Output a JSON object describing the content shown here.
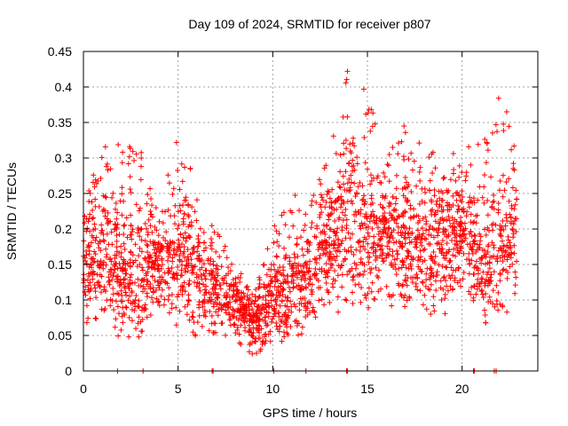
{
  "chart_data": {
    "type": "scatter",
    "title": "Day 109 of 2024, SRMTID for receiver p807",
    "xlabel": "GPS time / hours",
    "ylabel": "SRMTID / TECUs",
    "xlim": [
      0,
      24
    ],
    "ylim": [
      0,
      0.45
    ],
    "x_ticks": [
      0,
      5,
      10,
      15,
      20
    ],
    "x_tick_labels": [
      "0",
      "5",
      "10",
      "15",
      "20"
    ],
    "y_ticks": [
      0,
      0.05,
      0.1,
      0.15,
      0.2,
      0.25,
      0.3,
      0.35,
      0.4,
      0.45
    ],
    "y_tick_labels": [
      "0",
      "0.05",
      "0.1",
      "0.15",
      "0.2",
      "0.25",
      "0.3",
      "0.35",
      "0.4",
      "0.45"
    ],
    "grid": true,
    "marker": "+",
    "marker_color": "#ff0000",
    "grid_color": "#a0a0a0",
    "description_points_generated_from_envelope": true,
    "envelope": {
      "hours": [
        0,
        1,
        2,
        3,
        4,
        5,
        6,
        7,
        8,
        9,
        10,
        11,
        12,
        13,
        14,
        15,
        16,
        17,
        18,
        19,
        20,
        21,
        22,
        23
      ],
      "median": [
        0.14,
        0.17,
        0.15,
        0.13,
        0.16,
        0.15,
        0.13,
        0.12,
        0.1,
        0.07,
        0.1,
        0.12,
        0.13,
        0.18,
        0.22,
        0.19,
        0.19,
        0.18,
        0.17,
        0.18,
        0.2,
        0.14,
        0.17,
        0.2
      ],
      "upper": [
        0.26,
        0.32,
        0.32,
        0.32,
        0.22,
        0.34,
        0.26,
        0.2,
        0.15,
        0.12,
        0.2,
        0.25,
        0.25,
        0.3,
        0.45,
        0.4,
        0.3,
        0.35,
        0.32,
        0.32,
        0.32,
        0.32,
        0.39,
        0.32
      ],
      "lower": [
        0.08,
        0.07,
        0.06,
        0.06,
        0.09,
        0.08,
        0.06,
        0.05,
        0.04,
        0.02,
        0.04,
        0.06,
        0.07,
        0.09,
        0.12,
        0.1,
        0.1,
        0.09,
        0.1,
        0.1,
        0.11,
        0.08,
        0.1,
        0.11
      ]
    },
    "zero_hours": [
      1.8,
      3.15,
      6.8,
      6.85,
      10.05,
      11.75,
      13.9,
      13.95,
      20.6,
      20.65,
      21.7,
      21.8
    ]
  }
}
